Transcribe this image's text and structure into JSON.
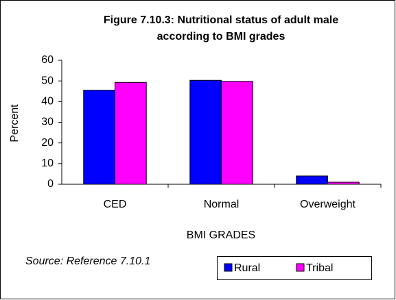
{
  "chart_data": {
    "type": "bar",
    "title": [
      "Figure 7.10.3: Nutritional status of adult male",
      "according to BMI grades"
    ],
    "categories": [
      "CED",
      "Normal",
      "Overweight"
    ],
    "series": [
      {
        "name": "Rural",
        "color": "#0000ff",
        "values": [
          45.5,
          50.3,
          4
        ]
      },
      {
        "name": "Tribal",
        "color": "#ff00ff",
        "values": [
          49.3,
          49.8,
          1
        ]
      }
    ],
    "ylim": [
      0,
      60
    ],
    "yticks": [
      0,
      10,
      20,
      30,
      40,
      50,
      60
    ],
    "xlabel": "BMI GRADES",
    "ylabel": "Percent",
    "annotation": "Source: Reference 7.10.1",
    "legend": "bottom-right"
  }
}
